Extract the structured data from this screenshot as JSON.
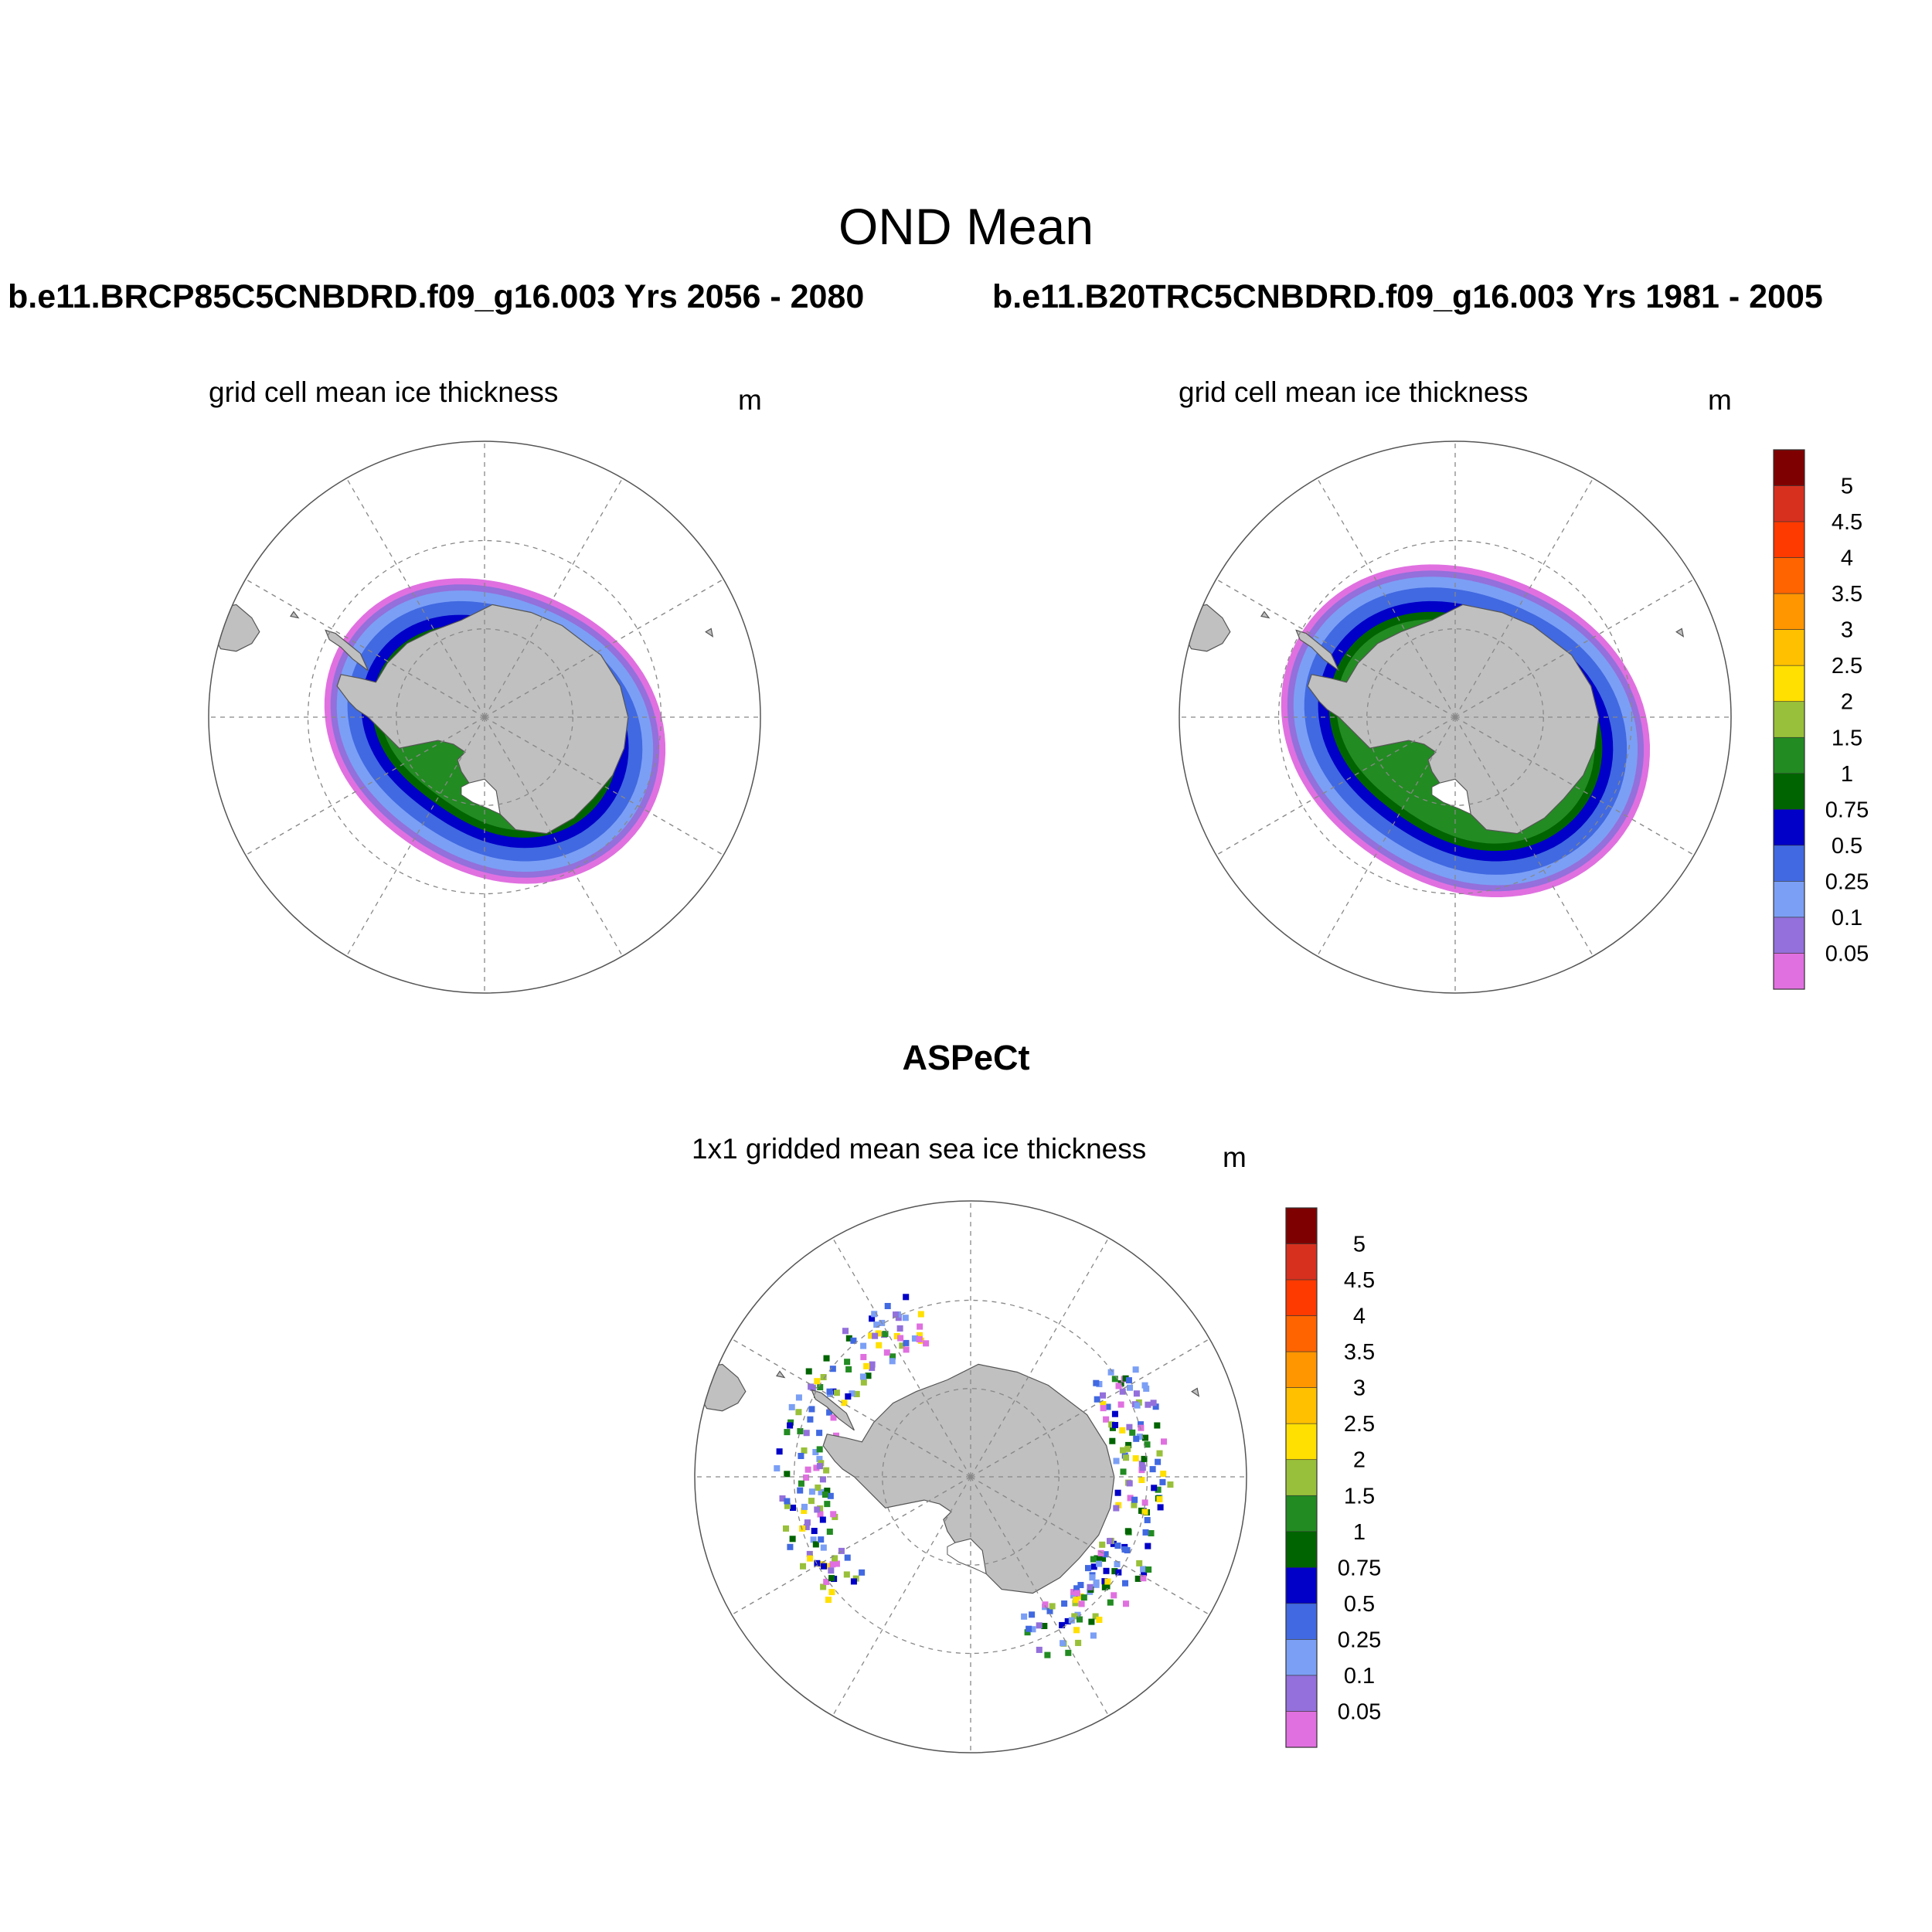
{
  "figure": {
    "title": "OND Mean",
    "panel_left_run": "b.e11.BRCP85C5CNBDRD.f09_g16.003  Yrs 2056 - 2080",
    "panel_right_run": "b.e11.B20TRC5CNBDRD.f09_g16.003  Yrs 1981 - 2005",
    "panel_bottom_title": "ASPeCt"
  },
  "panels": [
    {
      "id": "left",
      "subtitle": "grid cell mean ice thickness",
      "unit": "m"
    },
    {
      "id": "right",
      "subtitle": "grid cell mean ice thickness",
      "unit": "m"
    },
    {
      "id": "bottom",
      "subtitle": "1x1 gridded mean sea ice thickness",
      "unit": "m"
    }
  ],
  "colorbar": {
    "unit": "m",
    "levels": [
      "5",
      "4.5",
      "4",
      "3.5",
      "3",
      "2.5",
      "2",
      "1.5",
      "1",
      "0.75",
      "0.5",
      "0.25",
      "0.1",
      "0.05"
    ],
    "colors": [
      "#7f0000",
      "#d7301f",
      "#ff3a00",
      "#ff6400",
      "#ff9600",
      "#ffc000",
      "#ffe000",
      "#99c03a",
      "#228b22",
      "#006400",
      "#0000c8",
      "#4169e1",
      "#7b9ff5",
      "#9370db",
      "#e070e0"
    ]
  },
  "chart_data": {
    "type": "heatmap",
    "projection": "south polar stereographic",
    "variable": "sea ice thickness",
    "units": "m",
    "season": "OND",
    "panels": [
      {
        "title": "grid cell mean ice thickness",
        "source": "b.e11.BRCP85C5CNBDRD.f09_g16.003",
        "years": "2056 - 2080"
      },
      {
        "title": "grid cell mean ice thickness",
        "source": "b.e11.B20TRC5CNBDRD.f09_g16.003",
        "years": "1981 - 2005"
      },
      {
        "title": "1x1 gridded mean sea ice thickness",
        "source": "ASPeCt"
      }
    ],
    "contour_levels": [
      0.05,
      0.1,
      0.25,
      0.5,
      0.75,
      1,
      1.5,
      2,
      2.5,
      3,
      3.5,
      4,
      4.5,
      5
    ]
  }
}
